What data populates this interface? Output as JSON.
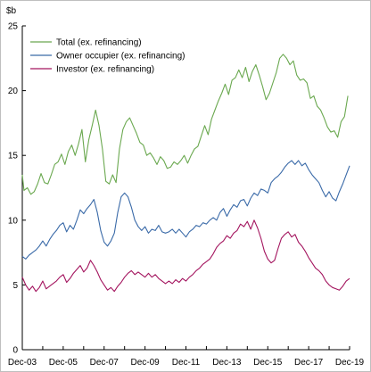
{
  "chart_data": {
    "type": "line",
    "ylabel": "$b",
    "ylim": [
      0,
      25
    ],
    "yticks": [
      0,
      5,
      10,
      15,
      20,
      25
    ],
    "xlim": [
      "2003-12",
      "2019-12"
    ],
    "xticks": [
      "Dec-03",
      "Dec-05",
      "Dec-07",
      "Dec-09",
      "Dec-11",
      "Dec-13",
      "Dec-15",
      "Dec-17",
      "Dec-19"
    ],
    "grid": false,
    "legend_position": "top-left",
    "series": [
      {
        "name": "Total (ex. refinancing)",
        "color": "#6aa84f",
        "points": [
          [
            "2003-12",
            13.5
          ],
          [
            "2004-01",
            12.3
          ],
          [
            "2004-03",
            12.5
          ],
          [
            "2004-05",
            12.0
          ],
          [
            "2004-07",
            12.2
          ],
          [
            "2004-09",
            12.8
          ],
          [
            "2004-11",
            13.6
          ],
          [
            "2005-01",
            12.9
          ],
          [
            "2005-03",
            12.8
          ],
          [
            "2005-05",
            13.5
          ],
          [
            "2005-07",
            14.3
          ],
          [
            "2005-09",
            14.5
          ],
          [
            "2005-11",
            15.1
          ],
          [
            "2006-01",
            14.3
          ],
          [
            "2006-03",
            15.3
          ],
          [
            "2006-05",
            15.8
          ],
          [
            "2006-07",
            15.0
          ],
          [
            "2006-09",
            15.9
          ],
          [
            "2006-11",
            17.0
          ],
          [
            "2007-01",
            14.5
          ],
          [
            "2007-03",
            16.2
          ],
          [
            "2007-05",
            17.3
          ],
          [
            "2007-07",
            18.5
          ],
          [
            "2007-09",
            17.3
          ],
          [
            "2007-11",
            15.5
          ],
          [
            "2008-01",
            13.0
          ],
          [
            "2008-03",
            12.8
          ],
          [
            "2008-05",
            13.5
          ],
          [
            "2008-07",
            12.9
          ],
          [
            "2008-09",
            15.5
          ],
          [
            "2008-11",
            17.0
          ],
          [
            "2009-01",
            17.6
          ],
          [
            "2009-03",
            17.9
          ],
          [
            "2009-05",
            17.3
          ],
          [
            "2009-07",
            16.7
          ],
          [
            "2009-09",
            16.0
          ],
          [
            "2009-11",
            15.8
          ],
          [
            "2010-01",
            15.0
          ],
          [
            "2010-03",
            15.2
          ],
          [
            "2010-05",
            14.8
          ],
          [
            "2010-07",
            14.3
          ],
          [
            "2010-09",
            14.9
          ],
          [
            "2010-11",
            14.6
          ],
          [
            "2011-01",
            14.0
          ],
          [
            "2011-03",
            14.1
          ],
          [
            "2011-05",
            14.5
          ],
          [
            "2011-07",
            14.3
          ],
          [
            "2011-09",
            14.6
          ],
          [
            "2011-11",
            15.0
          ],
          [
            "2012-01",
            14.4
          ],
          [
            "2012-03",
            15.0
          ],
          [
            "2012-05",
            15.5
          ],
          [
            "2012-07",
            15.7
          ],
          [
            "2012-09",
            16.5
          ],
          [
            "2012-11",
            17.3
          ],
          [
            "2013-01",
            16.6
          ],
          [
            "2013-03",
            17.8
          ],
          [
            "2013-05",
            18.5
          ],
          [
            "2013-07",
            19.2
          ],
          [
            "2013-09",
            19.8
          ],
          [
            "2013-11",
            20.5
          ],
          [
            "2014-01",
            19.7
          ],
          [
            "2014-03",
            20.8
          ],
          [
            "2014-05",
            21.0
          ],
          [
            "2014-07",
            21.6
          ],
          [
            "2014-09",
            21.0
          ],
          [
            "2014-11",
            21.8
          ],
          [
            "2015-01",
            20.7
          ],
          [
            "2015-03",
            21.5
          ],
          [
            "2015-05",
            22.0
          ],
          [
            "2015-07",
            21.2
          ],
          [
            "2015-09",
            20.3
          ],
          [
            "2015-11",
            19.3
          ],
          [
            "2016-01",
            19.8
          ],
          [
            "2016-03",
            20.6
          ],
          [
            "2016-05",
            21.4
          ],
          [
            "2016-07",
            22.5
          ],
          [
            "2016-09",
            22.8
          ],
          [
            "2016-11",
            22.5
          ],
          [
            "2017-01",
            22.0
          ],
          [
            "2017-03",
            22.3
          ],
          [
            "2017-05",
            21.2
          ],
          [
            "2017-07",
            20.8
          ],
          [
            "2017-09",
            20.9
          ],
          [
            "2017-11",
            20.6
          ],
          [
            "2018-01",
            19.4
          ],
          [
            "2018-03",
            19.6
          ],
          [
            "2018-05",
            18.8
          ],
          [
            "2018-07",
            18.5
          ],
          [
            "2018-09",
            17.9
          ],
          [
            "2018-11",
            17.2
          ],
          [
            "2019-01",
            16.8
          ],
          [
            "2019-03",
            16.9
          ],
          [
            "2019-05",
            16.4
          ],
          [
            "2019-07",
            17.6
          ],
          [
            "2019-09",
            18.0
          ],
          [
            "2019-11",
            19.6
          ]
        ]
      },
      {
        "name": "Owner occupier (ex. refinancing)",
        "color": "#3a6aa8",
        "points": [
          [
            "2003-12",
            7.2
          ],
          [
            "2004-02",
            7.0
          ],
          [
            "2004-04",
            7.3
          ],
          [
            "2004-06",
            7.5
          ],
          [
            "2004-08",
            7.7
          ],
          [
            "2004-10",
            8.0
          ],
          [
            "2004-12",
            8.4
          ],
          [
            "2005-02",
            8.0
          ],
          [
            "2005-04",
            8.5
          ],
          [
            "2005-06",
            8.9
          ],
          [
            "2005-08",
            9.2
          ],
          [
            "2005-10",
            9.6
          ],
          [
            "2005-12",
            9.8
          ],
          [
            "2006-02",
            9.1
          ],
          [
            "2006-04",
            9.6
          ],
          [
            "2006-06",
            9.3
          ],
          [
            "2006-08",
            10.0
          ],
          [
            "2006-10",
            10.8
          ],
          [
            "2006-12",
            10.5
          ],
          [
            "2007-02",
            10.9
          ],
          [
            "2007-04",
            11.2
          ],
          [
            "2007-06",
            11.6
          ],
          [
            "2007-08",
            10.6
          ],
          [
            "2007-10",
            9.2
          ],
          [
            "2007-12",
            8.3
          ],
          [
            "2008-02",
            8.0
          ],
          [
            "2008-04",
            8.4
          ],
          [
            "2008-06",
            9.0
          ],
          [
            "2008-08",
            10.6
          ],
          [
            "2008-10",
            11.8
          ],
          [
            "2008-12",
            12.1
          ],
          [
            "2009-02",
            11.8
          ],
          [
            "2009-04",
            11.0
          ],
          [
            "2009-06",
            10.0
          ],
          [
            "2009-08",
            9.5
          ],
          [
            "2009-10",
            9.2
          ],
          [
            "2009-12",
            9.5
          ],
          [
            "2010-02",
            9.0
          ],
          [
            "2010-04",
            9.3
          ],
          [
            "2010-06",
            9.2
          ],
          [
            "2010-08",
            9.6
          ],
          [
            "2010-10",
            9.1
          ],
          [
            "2010-12",
            9.0
          ],
          [
            "2011-02",
            9.1
          ],
          [
            "2011-04",
            9.3
          ],
          [
            "2011-06",
            9.0
          ],
          [
            "2011-08",
            9.3
          ],
          [
            "2011-10",
            9.0
          ],
          [
            "2011-12",
            8.7
          ],
          [
            "2012-02",
            9.1
          ],
          [
            "2012-04",
            9.3
          ],
          [
            "2012-06",
            9.6
          ],
          [
            "2012-08",
            9.5
          ],
          [
            "2012-10",
            9.8
          ],
          [
            "2012-12",
            9.7
          ],
          [
            "2013-02",
            10.0
          ],
          [
            "2013-04",
            10.2
          ],
          [
            "2013-06",
            10.0
          ],
          [
            "2013-08",
            10.6
          ],
          [
            "2013-10",
            10.9
          ],
          [
            "2013-12",
            10.3
          ],
          [
            "2014-02",
            10.8
          ],
          [
            "2014-04",
            11.2
          ],
          [
            "2014-06",
            11.0
          ],
          [
            "2014-08",
            11.5
          ],
          [
            "2014-10",
            11.6
          ],
          [
            "2014-12",
            11.1
          ],
          [
            "2015-02",
            11.7
          ],
          [
            "2015-04",
            12.1
          ],
          [
            "2015-06",
            11.9
          ],
          [
            "2015-08",
            12.4
          ],
          [
            "2015-10",
            12.3
          ],
          [
            "2015-12",
            12.1
          ],
          [
            "2016-02",
            12.9
          ],
          [
            "2016-04",
            13.2
          ],
          [
            "2016-06",
            13.4
          ],
          [
            "2016-08",
            13.7
          ],
          [
            "2016-10",
            14.1
          ],
          [
            "2016-12",
            14.4
          ],
          [
            "2017-02",
            14.6
          ],
          [
            "2017-04",
            14.3
          ],
          [
            "2017-06",
            14.6
          ],
          [
            "2017-08",
            14.2
          ],
          [
            "2017-10",
            14.4
          ],
          [
            "2017-12",
            13.9
          ],
          [
            "2018-02",
            13.5
          ],
          [
            "2018-04",
            13.2
          ],
          [
            "2018-06",
            12.9
          ],
          [
            "2018-08",
            12.3
          ],
          [
            "2018-10",
            11.8
          ],
          [
            "2018-12",
            12.2
          ],
          [
            "2019-02",
            11.7
          ],
          [
            "2019-04",
            11.5
          ],
          [
            "2019-06",
            12.2
          ],
          [
            "2019-08",
            12.8
          ],
          [
            "2019-10",
            13.5
          ],
          [
            "2019-12",
            14.2
          ]
        ]
      },
      {
        "name": "Investor (ex. refinancing)",
        "color": "#a3145e",
        "points": [
          [
            "2003-12",
            5.6
          ],
          [
            "2004-02",
            5.0
          ],
          [
            "2004-04",
            4.6
          ],
          [
            "2004-06",
            4.9
          ],
          [
            "2004-08",
            4.5
          ],
          [
            "2004-10",
            4.8
          ],
          [
            "2004-12",
            5.3
          ],
          [
            "2005-02",
            4.7
          ],
          [
            "2005-04",
            4.9
          ],
          [
            "2005-06",
            5.1
          ],
          [
            "2005-08",
            5.3
          ],
          [
            "2005-10",
            5.6
          ],
          [
            "2005-12",
            5.8
          ],
          [
            "2006-02",
            5.2
          ],
          [
            "2006-04",
            5.5
          ],
          [
            "2006-06",
            5.9
          ],
          [
            "2006-08",
            6.2
          ],
          [
            "2006-10",
            6.5
          ],
          [
            "2006-12",
            6.0
          ],
          [
            "2007-02",
            6.3
          ],
          [
            "2007-04",
            6.9
          ],
          [
            "2007-06",
            6.5
          ],
          [
            "2007-08",
            6.0
          ],
          [
            "2007-10",
            5.4
          ],
          [
            "2007-12",
            5.0
          ],
          [
            "2008-02",
            4.6
          ],
          [
            "2008-04",
            4.8
          ],
          [
            "2008-06",
            4.5
          ],
          [
            "2008-08",
            4.9
          ],
          [
            "2008-10",
            5.2
          ],
          [
            "2008-12",
            5.6
          ],
          [
            "2009-02",
            5.9
          ],
          [
            "2009-04",
            6.1
          ],
          [
            "2009-06",
            5.8
          ],
          [
            "2009-08",
            6.0
          ],
          [
            "2009-10",
            5.8
          ],
          [
            "2009-12",
            5.6
          ],
          [
            "2010-02",
            5.9
          ],
          [
            "2010-04",
            5.6
          ],
          [
            "2010-06",
            5.8
          ],
          [
            "2010-08",
            5.5
          ],
          [
            "2010-10",
            5.3
          ],
          [
            "2010-12",
            5.1
          ],
          [
            "2011-02",
            5.3
          ],
          [
            "2011-04",
            5.1
          ],
          [
            "2011-06",
            5.4
          ],
          [
            "2011-08",
            5.2
          ],
          [
            "2011-10",
            5.5
          ],
          [
            "2011-12",
            5.3
          ],
          [
            "2012-02",
            5.6
          ],
          [
            "2012-04",
            5.8
          ],
          [
            "2012-06",
            6.1
          ],
          [
            "2012-08",
            6.3
          ],
          [
            "2012-10",
            6.6
          ],
          [
            "2012-12",
            6.8
          ],
          [
            "2013-02",
            7.0
          ],
          [
            "2013-04",
            7.4
          ],
          [
            "2013-06",
            7.9
          ],
          [
            "2013-08",
            8.2
          ],
          [
            "2013-10",
            8.4
          ],
          [
            "2013-12",
            8.8
          ],
          [
            "2014-02",
            8.6
          ],
          [
            "2014-04",
            9.0
          ],
          [
            "2014-06",
            9.2
          ],
          [
            "2014-08",
            9.7
          ],
          [
            "2014-10",
            9.5
          ],
          [
            "2014-12",
            9.9
          ],
          [
            "2015-02",
            9.3
          ],
          [
            "2015-04",
            10.0
          ],
          [
            "2015-06",
            9.4
          ],
          [
            "2015-08",
            8.6
          ],
          [
            "2015-10",
            7.6
          ],
          [
            "2015-12",
            7.0
          ],
          [
            "2016-02",
            6.7
          ],
          [
            "2016-04",
            6.9
          ],
          [
            "2016-06",
            7.8
          ],
          [
            "2016-08",
            8.6
          ],
          [
            "2016-10",
            8.9
          ],
          [
            "2016-12",
            9.1
          ],
          [
            "2017-02",
            8.7
          ],
          [
            "2017-04",
            8.9
          ],
          [
            "2017-06",
            8.3
          ],
          [
            "2017-08",
            8.0
          ],
          [
            "2017-10",
            7.6
          ],
          [
            "2017-12",
            7.1
          ],
          [
            "2018-02",
            6.7
          ],
          [
            "2018-04",
            6.3
          ],
          [
            "2018-06",
            6.1
          ],
          [
            "2018-08",
            5.8
          ],
          [
            "2018-10",
            5.3
          ],
          [
            "2018-12",
            5.0
          ],
          [
            "2019-02",
            4.8
          ],
          [
            "2019-04",
            4.7
          ],
          [
            "2019-06",
            4.6
          ],
          [
            "2019-08",
            4.9
          ],
          [
            "2019-10",
            5.3
          ],
          [
            "2019-12",
            5.5
          ]
        ]
      }
    ]
  }
}
